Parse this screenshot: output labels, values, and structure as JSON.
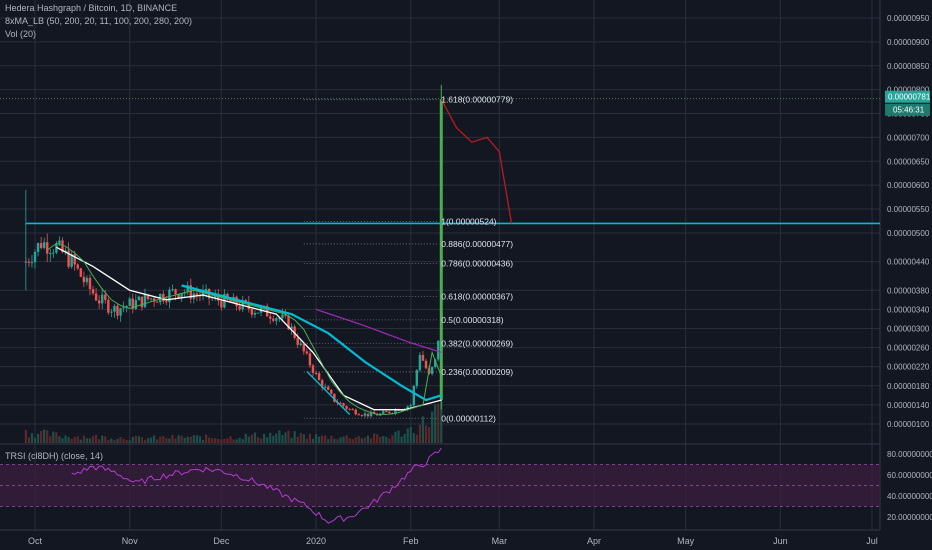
{
  "legend": {
    "title": "Hedera Hashgraph / Bitcoin, 1D, BINANCE",
    "ma": "8xMA_LB (50, 200, 20, 11, 100, 200, 280, 200)",
    "vol": "Vol (20)",
    "trsi": "TRSI (cl8DH) (close, 14)"
  },
  "colors": {
    "background": "#131722",
    "grid": "#2a2e39",
    "up_candle": "#26a69a",
    "down_candle": "#ef5350",
    "green_spike": "#4caf50",
    "cyan": "#00bcd4",
    "ma_white": "#ffffff",
    "ma_green": "#4caf50",
    "ma_purple": "#9c27b0",
    "forecast": "#b71c1c",
    "rsi_line": "#b33bcc",
    "rsi_band": "#3a1e3f"
  },
  "chart_data": [
    {
      "type": "candlestick",
      "title": "Hedera Hashgraph / Bitcoin, 1D, BINANCE",
      "x_axis": {
        "tick_labels": [
          "Oct",
          "Nov",
          "Dec",
          "2020",
          "Feb",
          "Mar",
          "Apr",
          "May",
          "Jun",
          "Jul"
        ],
        "tick_dates": [
          "2019-10-01",
          "2019-11-01",
          "2019-12-01",
          "2020-01-01",
          "2020-02-01",
          "2020-03-01",
          "2020-04-01",
          "2020-05-01",
          "2020-06-01",
          "2020-07-01"
        ]
      },
      "y_axis": {
        "range": [
          8e-07,
          9.75e-06
        ],
        "tick_labels": [
          "0.00000100",
          "0.00000140",
          "0.00000180",
          "0.00000220",
          "0.00000260",
          "0.00000300",
          "0.00000340",
          "0.00000380",
          "0.00000440",
          "0.00000500",
          "0.00000550",
          "0.00000600",
          "0.00000650",
          "0.00000700",
          "0.00000750",
          "0.00000800",
          "0.00000850",
          "0.00000900",
          "0.00000950"
        ],
        "tick_values": [
          1e-06,
          1.4e-06,
          1.8e-06,
          2.2e-06,
          2.6e-06,
          3e-06,
          3.4e-06,
          3.8e-06,
          4.4e-06,
          5e-06,
          5.5e-06,
          6e-06,
          6.5e-06,
          7e-06,
          7.5e-06,
          8e-06,
          8.5e-06,
          9e-06,
          9.5e-06
        ]
      },
      "price_badge": {
        "value": "0.00000781",
        "countdown": "05:46:31"
      },
      "horizontal_line": {
        "value": 5.2e-06,
        "from_date": "2019-09-28"
      },
      "fibonacci": {
        "start_date": "2019-12-28",
        "end_date": "2020-02-10",
        "levels": [
          {
            "label": "1.618(0.00000779)",
            "value": 7.79e-06
          },
          {
            "label": "1(0.00000524)",
            "value": 5.24e-06
          },
          {
            "label": "0.886(0.00000477)",
            "value": 4.77e-06
          },
          {
            "label": "0.786(0.00000436)",
            "value": 4.36e-06
          },
          {
            "label": "0.618(0.00000367)",
            "value": 3.67e-06
          },
          {
            "label": "0.5(0.00000318)",
            "value": 3.18e-06
          },
          {
            "label": "0.382(0.00000269)",
            "value": 2.69e-06
          },
          {
            "label": "0.236(0.00000209)",
            "value": 2.09e-06
          },
          {
            "label": "0(0.00000112)",
            "value": 1.12e-06
          }
        ]
      },
      "price_path": {
        "dates": [
          "2019-09-28",
          "2019-10-03",
          "2019-10-08",
          "2019-10-13",
          "2019-10-18",
          "2019-10-22",
          "2019-10-27",
          "2019-11-01",
          "2019-11-06",
          "2019-11-12",
          "2019-11-18",
          "2019-11-24",
          "2019-11-30",
          "2019-12-06",
          "2019-12-12",
          "2019-12-18",
          "2019-12-23",
          "2019-12-28",
          "2020-01-02",
          "2020-01-07",
          "2020-01-12",
          "2020-01-17",
          "2020-01-22",
          "2020-01-27",
          "2020-02-01",
          "2020-02-04",
          "2020-02-07",
          "2020-02-09",
          "2020-02-10",
          "2020-02-11"
        ],
        "values": [
          4.4e-06,
          4.8e-06,
          4.7e-06,
          4.4e-06,
          3.9e-06,
          3.6e-06,
          3.4e-06,
          3.5e-06,
          3.6e-06,
          3.7e-06,
          3.8e-06,
          3.7e-06,
          3.6e-06,
          3.5e-06,
          3.4e-06,
          3.3e-06,
          3.1e-06,
          2.5e-06,
          1.9e-06,
          1.5e-06,
          1.3e-06,
          1.2e-06,
          1.2e-06,
          1.3e-06,
          1.4e-06,
          2.5e-06,
          2e-06,
          2.3e-06,
          2.8e-06,
          7.8e-06
        ]
      },
      "moving_averages": [
        {
          "color": "#00bcd4",
          "dates": [
            "2019-11-18",
            "2019-11-30",
            "2019-12-12",
            "2019-12-24",
            "2020-01-05",
            "2020-01-17",
            "2020-01-29",
            "2020-02-06",
            "2020-02-11"
          ],
          "values": [
            3.9e-06,
            3.7e-06,
            3.5e-06,
            3.3e-06,
            2.9e-06,
            2.3e-06,
            1.8e-06,
            1.5e-06,
            1.6e-06
          ]
        },
        {
          "color": "#ffffff",
          "dates": [
            "2019-10-08",
            "2019-10-20",
            "2019-11-01",
            "2019-11-13",
            "2019-11-25",
            "2019-12-07",
            "2019-12-19",
            "2019-12-31",
            "2020-01-10",
            "2020-01-20",
            "2020-01-30",
            "2020-02-11"
          ],
          "values": [
            4.7e-06,
            4.3e-06,
            3.8e-06,
            3.6e-06,
            3.7e-06,
            3.5e-06,
            3.3e-06,
            2.5e-06,
            1.6e-06,
            1.3e-06,
            1.3e-06,
            1.5e-06
          ]
        },
        {
          "color": "#9c27b0",
          "dates": [
            "2020-01-01",
            "2020-01-15",
            "2020-02-01",
            "2020-02-11"
          ],
          "values": [
            3.4e-06,
            3.1e-06,
            2.7e-06,
            2.5e-06
          ]
        }
      ],
      "forecast_path": {
        "color": "#b71c1c",
        "dates": [
          "2020-02-11",
          "2020-02-16",
          "2020-02-21",
          "2020-02-26",
          "2020-03-01",
          "2020-03-05"
        ],
        "values": [
          7.8e-06,
          7.2e-06,
          6.9e-06,
          7e-06,
          6.7e-06,
          5.2e-06
        ]
      },
      "volume": {
        "dates": [
          "2019-09-29",
          "2019-10-10",
          "2019-10-22",
          "2019-11-05",
          "2019-11-20",
          "2019-12-02",
          "2019-12-20",
          "2020-01-05",
          "2020-01-25",
          "2020-02-04",
          "2020-02-10",
          "2020-02-11"
        ],
        "values": [
          0.18,
          0.12,
          0.1,
          0.08,
          0.1,
          0.09,
          0.15,
          0.1,
          0.11,
          0.28,
          0.55,
          1.0
        ]
      }
    },
    {
      "type": "line",
      "title": "TRSI (cl8DH) (close, 14)",
      "y_axis": {
        "range": [
          12,
          86
        ],
        "tick_labels": [
          "20.00000000",
          "40.00000000",
          "60.00000000",
          "80.00000000"
        ],
        "tick_values": [
          20,
          40,
          60,
          80
        ]
      },
      "bands": {
        "upper": 70,
        "middle": 50,
        "lower": 30
      },
      "series": [
        {
          "dates": [
            "2019-10-13",
            "2019-10-20",
            "2019-10-27",
            "2019-11-03",
            "2019-11-10",
            "2019-11-17",
            "2019-11-24",
            "2019-12-01",
            "2019-12-08",
            "2019-12-15",
            "2019-12-22",
            "2019-12-29",
            "2020-01-05",
            "2020-01-12",
            "2020-01-19",
            "2020-01-26",
            "2020-02-02",
            "2020-02-06",
            "2020-02-09",
            "2020-02-11"
          ],
          "values": [
            60,
            68,
            63,
            52,
            58,
            62,
            66,
            64,
            58,
            50,
            40,
            30,
            16,
            20,
            32,
            48,
            66,
            72,
            80,
            84
          ]
        }
      ]
    }
  ]
}
